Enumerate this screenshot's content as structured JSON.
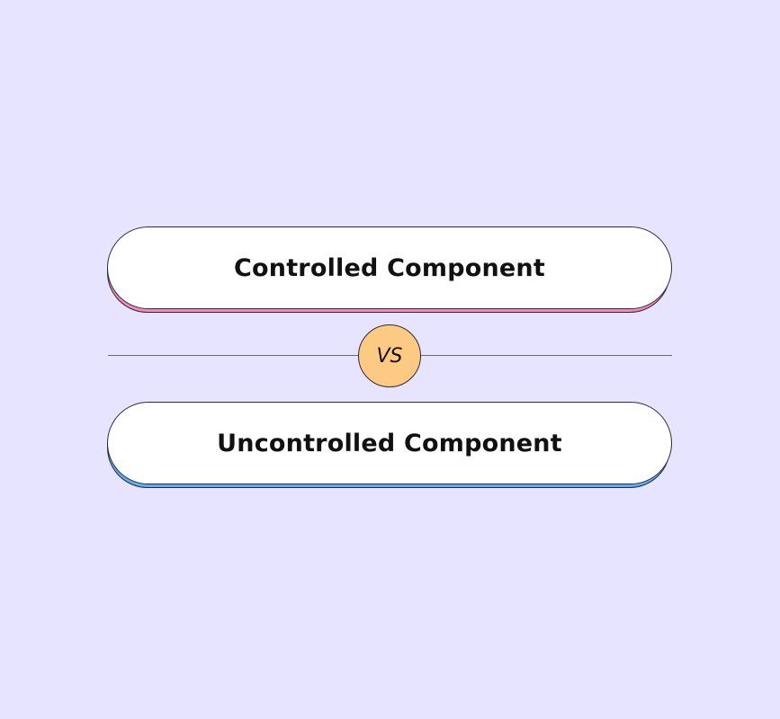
{
  "colors": {
    "background": "#e6e4fe",
    "top_accent": "#f38bb5",
    "bottom_accent": "#5eaef2",
    "vs_badge": "#fdca84"
  },
  "comparison": {
    "left_label": "Controlled Component",
    "separator_label": "VS",
    "right_label": "Uncontrolled Component"
  }
}
